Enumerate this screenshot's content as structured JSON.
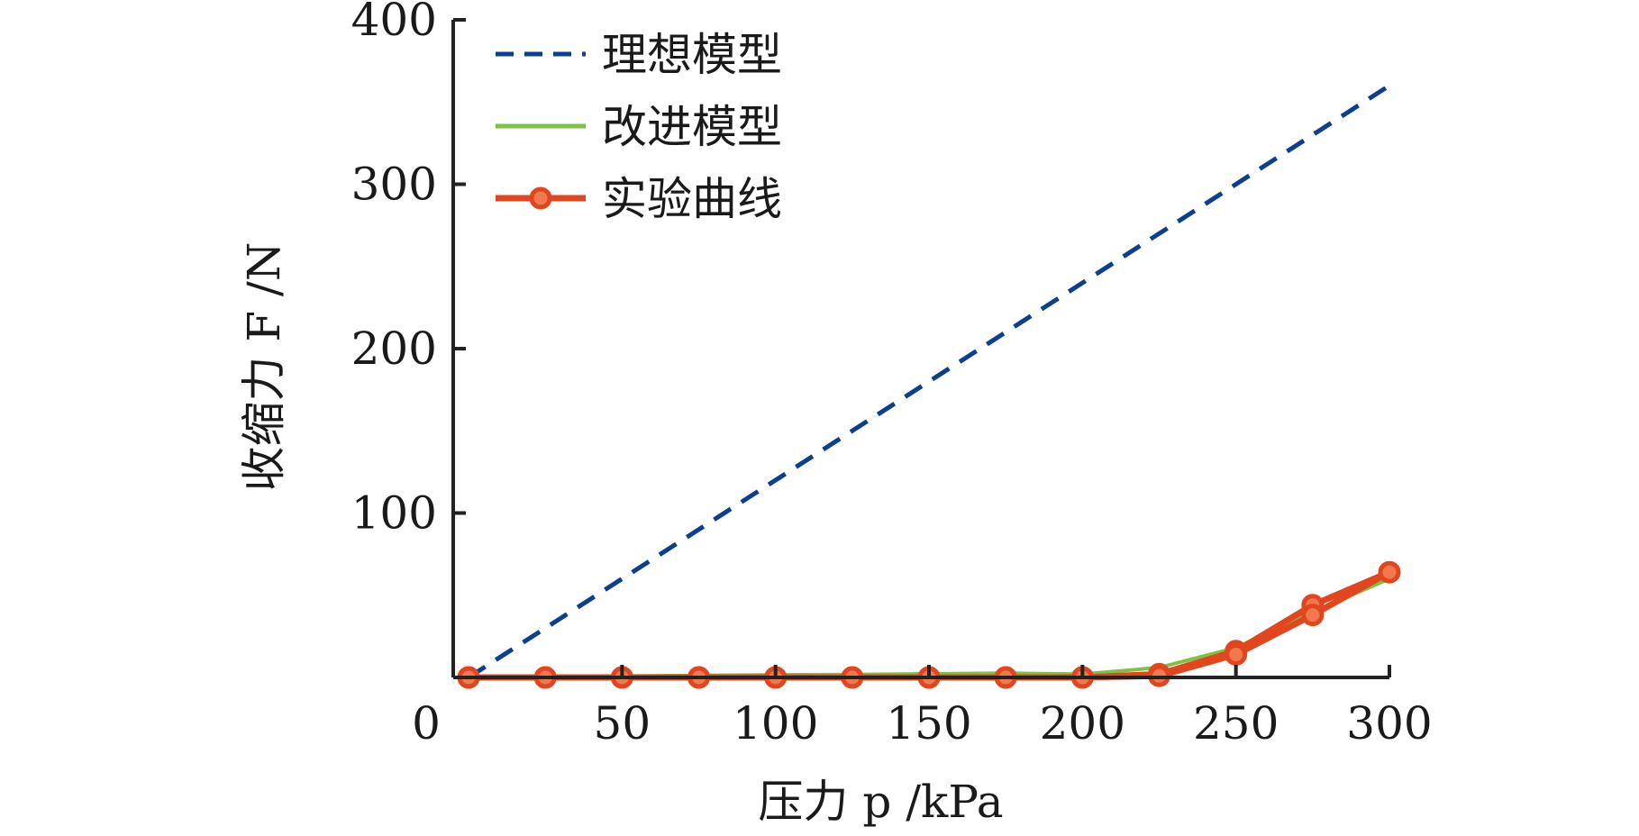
{
  "chart_data": {
    "type": "line",
    "xlabel": "压力 p /kPa",
    "ylabel": "收缩力 F /N",
    "xlim": [
      -5,
      300
    ],
    "ylim": [
      0,
      400
    ],
    "x_ticks": [
      0,
      50,
      100,
      150,
      200,
      250,
      300
    ],
    "y_ticks": [
      100,
      200,
      300,
      400
    ],
    "grid": false,
    "legend_position": "top-left",
    "series": [
      {
        "name": "理想模型",
        "style": "dashed",
        "color": "#0d3f8f",
        "x": [
          0,
          300
        ],
        "y": [
          0,
          360
        ]
      },
      {
        "name": "改进模型",
        "style": "solid",
        "color": "#7dc242",
        "x": [
          0,
          25,
          50,
          75,
          100,
          125,
          150,
          175,
          200,
          225,
          250,
          275,
          300
        ],
        "y": [
          0,
          0.5,
          0.8,
          1.2,
          1.6,
          1.8,
          2.2,
          2.6,
          2,
          6,
          18,
          40,
          60
        ]
      },
      {
        "name": "实验曲线",
        "style": "solid-markers",
        "color": "#e2461e",
        "x": [
          0,
          25,
          50,
          75,
          100,
          125,
          150,
          175,
          200,
          225,
          250,
          275,
          300,
          275,
          250,
          225,
          200,
          175,
          150,
          125,
          100,
          75,
          50,
          25,
          0
        ],
        "y": [
          0,
          0,
          0,
          0,
          0,
          0,
          0,
          0,
          0,
          2,
          16,
          44,
          64,
          38,
          14,
          1,
          0,
          0,
          0,
          0,
          0,
          0,
          0,
          0,
          0
        ]
      }
    ]
  }
}
